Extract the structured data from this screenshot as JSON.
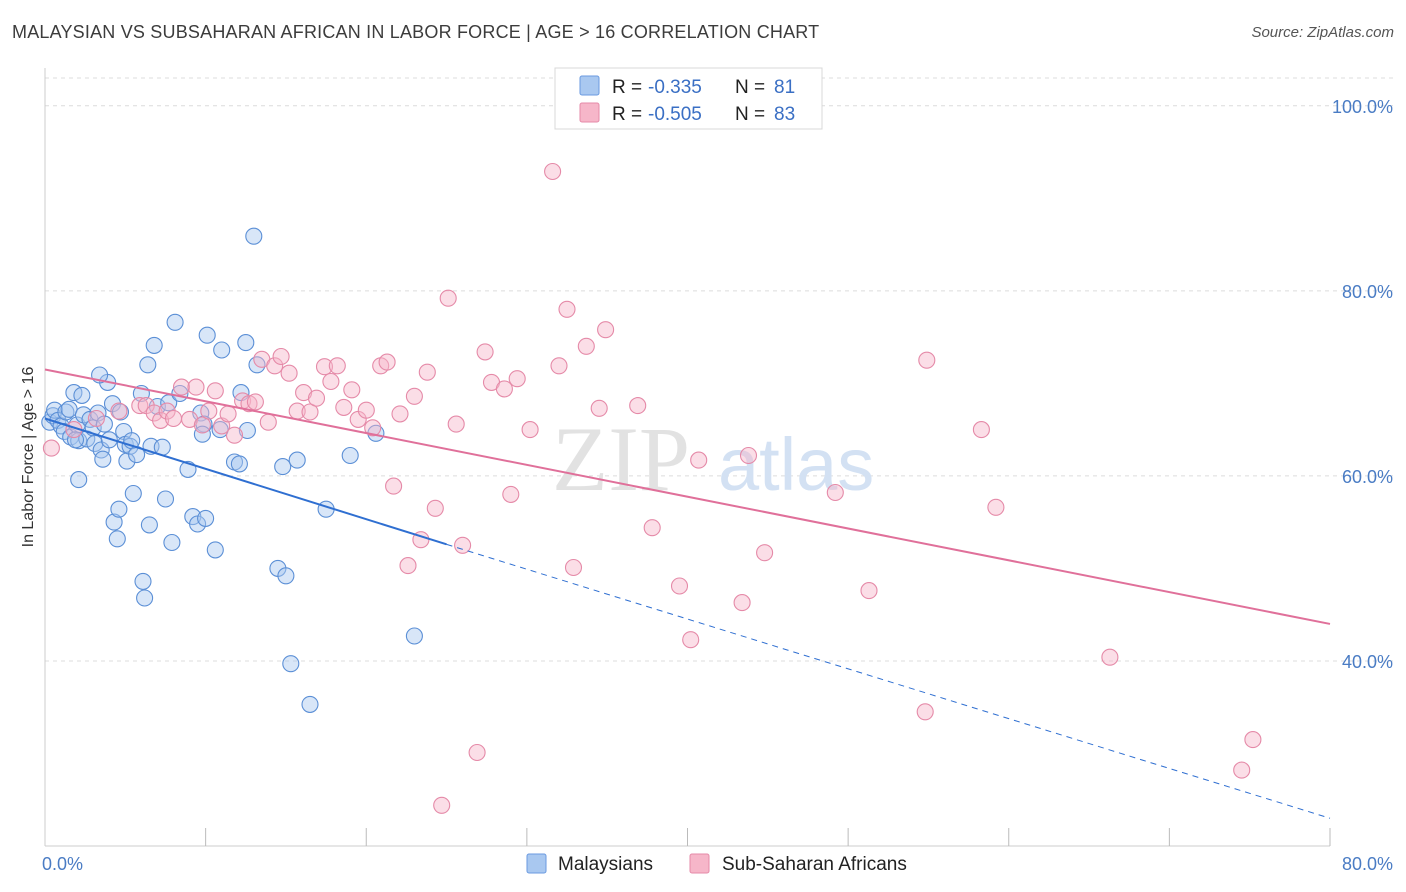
{
  "header": {
    "title": "MALAYSIAN VS SUBSAHARAN AFRICAN IN LABOR FORCE | AGE > 16 CORRELATION CHART",
    "source": "Source: ZipAtlas.com"
  },
  "watermark": {
    "zip": "ZIP",
    "atlas": "atlas"
  },
  "legend_box": {
    "rows": [
      {
        "r_label": "R =",
        "r_value": "-0.335",
        "n_label": "N =",
        "n_value": "81",
        "color": "#a9c8f0"
      },
      {
        "r_label": "R =",
        "r_value": "-0.505",
        "n_label": "N =",
        "n_value": "83",
        "color": "#f6b6c9"
      }
    ]
  },
  "colors": {
    "malaysians_fill": "#a9c8f0",
    "malaysians_stroke": "#5b8fd6",
    "malaysians_line": "#2f6fd1",
    "subsaharan_fill": "#f6b6c9",
    "subsaharan_stroke": "#e58aa8",
    "subsaharan_line": "#e0709a",
    "tick_label": "#4a7cc4",
    "grid": "#dcdcdc"
  },
  "chart_data": {
    "type": "scatter",
    "title": "MALAYSIAN VS SUBSAHARAN AFRICAN IN LABOR FORCE | AGE > 16 CORRELATION CHART",
    "xlabel": "",
    "ylabel": "In Labor Force | Age > 16",
    "xlim": [
      0,
      80
    ],
    "ylim": [
      20,
      103
    ],
    "x_tick_labels": [
      "0.0%",
      "80.0%"
    ],
    "y_ticks": [
      40,
      60,
      80,
      100
    ],
    "y_tick_labels": [
      "40.0%",
      "60.0%",
      "80.0%",
      "100.0%"
    ],
    "grid": true,
    "legend_position": "bottom",
    "series": [
      {
        "name": "Malaysians",
        "R": -0.335,
        "N": 81,
        "trend": {
          "x0": 0,
          "y0": 66.2,
          "x1": 25,
          "y1": 52.6,
          "dashed_to_x": 80,
          "dashed_y1": 23.0
        },
        "points": [
          [
            0.3,
            65.8
          ],
          [
            0.5,
            66.5
          ],
          [
            0.6,
            67.1
          ],
          [
            0.8,
            66.0
          ],
          [
            1.0,
            65.4
          ],
          [
            1.2,
            64.8
          ],
          [
            1.3,
            66.9
          ],
          [
            1.5,
            67.2
          ],
          [
            1.6,
            64.2
          ],
          [
            1.8,
            69.0
          ],
          [
            2.0,
            65.5
          ],
          [
            2.1,
            63.8
          ],
          [
            2.3,
            68.7
          ],
          [
            2.4,
            66.6
          ],
          [
            2.6,
            64.0
          ],
          [
            2.8,
            66.1
          ],
          [
            2.1,
            59.6
          ],
          [
            3.0,
            65.2
          ],
          [
            3.1,
            63.5
          ],
          [
            3.3,
            66.8
          ],
          [
            3.5,
            62.8
          ],
          [
            3.6,
            61.8
          ],
          [
            3.7,
            65.6
          ],
          [
            3.9,
            70.1
          ],
          [
            4.0,
            63.9
          ],
          [
            4.2,
            67.8
          ],
          [
            4.3,
            55.0
          ],
          [
            4.5,
            53.2
          ],
          [
            4.6,
            56.4
          ],
          [
            4.7,
            66.9
          ],
          [
            4.9,
            64.8
          ],
          [
            5.0,
            63.4
          ],
          [
            5.1,
            61.6
          ],
          [
            5.3,
            63.2
          ],
          [
            5.4,
            63.8
          ],
          [
            5.5,
            58.1
          ],
          [
            5.7,
            62.3
          ],
          [
            6.0,
            68.9
          ],
          [
            6.1,
            48.6
          ],
          [
            6.2,
            46.8
          ],
          [
            6.4,
            72.0
          ],
          [
            6.5,
            54.7
          ],
          [
            6.6,
            63.2
          ],
          [
            6.8,
            74.1
          ],
          [
            7.0,
            67.5
          ],
          [
            7.3,
            63.1
          ],
          [
            7.5,
            57.5
          ],
          [
            7.7,
            67.9
          ],
          [
            7.9,
            52.8
          ],
          [
            8.1,
            76.6
          ],
          [
            8.4,
            68.9
          ],
          [
            8.9,
            60.7
          ],
          [
            9.2,
            55.6
          ],
          [
            9.5,
            54.8
          ],
          [
            9.7,
            66.8
          ],
          [
            9.9,
            65.6
          ],
          [
            10.0,
            55.4
          ],
          [
            10.1,
            75.2
          ],
          [
            10.6,
            52.0
          ],
          [
            10.9,
            65.0
          ],
          [
            11.0,
            73.6
          ],
          [
            11.8,
            61.5
          ],
          [
            12.1,
            61.3
          ],
          [
            12.2,
            69.0
          ],
          [
            12.5,
            74.4
          ],
          [
            12.6,
            64.9
          ],
          [
            13.0,
            85.9
          ],
          [
            13.2,
            72.0
          ],
          [
            14.8,
            61.0
          ],
          [
            14.5,
            50.0
          ],
          [
            15.0,
            49.2
          ],
          [
            15.3,
            39.7
          ],
          [
            15.7,
            61.7
          ],
          [
            16.5,
            35.3
          ],
          [
            17.5,
            56.4
          ],
          [
            19.0,
            62.2
          ],
          [
            20.6,
            64.6
          ],
          [
            23.0,
            42.7
          ],
          [
            9.8,
            64.5
          ],
          [
            3.4,
            70.9
          ],
          [
            1.9,
            63.9
          ]
        ]
      },
      {
        "name": "Sub-Saharan Africans",
        "R": -0.505,
        "N": 83,
        "trend": {
          "x0": 0,
          "y0": 71.5,
          "x1": 80,
          "y1": 44.0
        },
        "points": [
          [
            0.4,
            63.0
          ],
          [
            1.8,
            65.0
          ],
          [
            3.2,
            66.2
          ],
          [
            4.6,
            67.0
          ],
          [
            5.9,
            67.6
          ],
          [
            6.3,
            67.6
          ],
          [
            6.8,
            66.8
          ],
          [
            7.2,
            66.0
          ],
          [
            7.6,
            67.0
          ],
          [
            8.0,
            66.2
          ],
          [
            8.5,
            69.6
          ],
          [
            9.0,
            66.1
          ],
          [
            9.4,
            69.6
          ],
          [
            9.8,
            65.5
          ],
          [
            10.2,
            67.0
          ],
          [
            10.6,
            69.2
          ],
          [
            11.0,
            65.4
          ],
          [
            11.4,
            66.7
          ],
          [
            11.8,
            64.4
          ],
          [
            12.3,
            68.1
          ],
          [
            12.7,
            67.8
          ],
          [
            13.1,
            68.0
          ],
          [
            13.5,
            72.6
          ],
          [
            13.9,
            65.8
          ],
          [
            14.3,
            71.9
          ],
          [
            14.7,
            72.9
          ],
          [
            15.2,
            71.1
          ],
          [
            15.7,
            67.0
          ],
          [
            16.1,
            69.0
          ],
          [
            16.5,
            66.9
          ],
          [
            16.9,
            68.4
          ],
          [
            17.4,
            71.8
          ],
          [
            17.8,
            70.2
          ],
          [
            18.2,
            71.9
          ],
          [
            18.6,
            67.4
          ],
          [
            19.1,
            69.3
          ],
          [
            19.5,
            66.1
          ],
          [
            20.0,
            67.1
          ],
          [
            20.4,
            65.2
          ],
          [
            20.9,
            71.9
          ],
          [
            21.3,
            72.3
          ],
          [
            21.7,
            58.9
          ],
          [
            22.1,
            66.7
          ],
          [
            22.6,
            50.3
          ],
          [
            23.0,
            68.6
          ],
          [
            23.4,
            53.1
          ],
          [
            23.8,
            71.2
          ],
          [
            24.3,
            56.5
          ],
          [
            24.7,
            24.4
          ],
          [
            25.1,
            79.2
          ],
          [
            25.6,
            65.6
          ],
          [
            26.0,
            52.5
          ],
          [
            26.9,
            30.1
          ],
          [
            27.4,
            73.4
          ],
          [
            27.8,
            70.1
          ],
          [
            28.6,
            69.4
          ],
          [
            29.0,
            58.0
          ],
          [
            29.4,
            70.5
          ],
          [
            30.2,
            65.0
          ],
          [
            31.6,
            92.9
          ],
          [
            32.0,
            71.9
          ],
          [
            32.5,
            78.0
          ],
          [
            32.9,
            50.1
          ],
          [
            33.7,
            74.0
          ],
          [
            34.5,
            67.3
          ],
          [
            34.9,
            75.8
          ],
          [
            36.9,
            67.6
          ],
          [
            37.8,
            54.4
          ],
          [
            39.5,
            48.1
          ],
          [
            40.2,
            42.3
          ],
          [
            40.7,
            61.7
          ],
          [
            43.4,
            46.3
          ],
          [
            43.8,
            62.2
          ],
          [
            44.8,
            51.7
          ],
          [
            49.2,
            58.2
          ],
          [
            51.3,
            47.6
          ],
          [
            54.8,
            34.5
          ],
          [
            54.9,
            72.5
          ],
          [
            58.3,
            65.0
          ],
          [
            59.2,
            56.6
          ],
          [
            66.3,
            40.4
          ],
          [
            74.5,
            28.2
          ],
          [
            75.2,
            31.5
          ]
        ]
      }
    ]
  },
  "bottom_legend": {
    "items": [
      {
        "label": "Malaysians",
        "color": "#a9c8f0"
      },
      {
        "label": "Sub-Saharan Africans",
        "color": "#f6b6c9"
      }
    ]
  }
}
